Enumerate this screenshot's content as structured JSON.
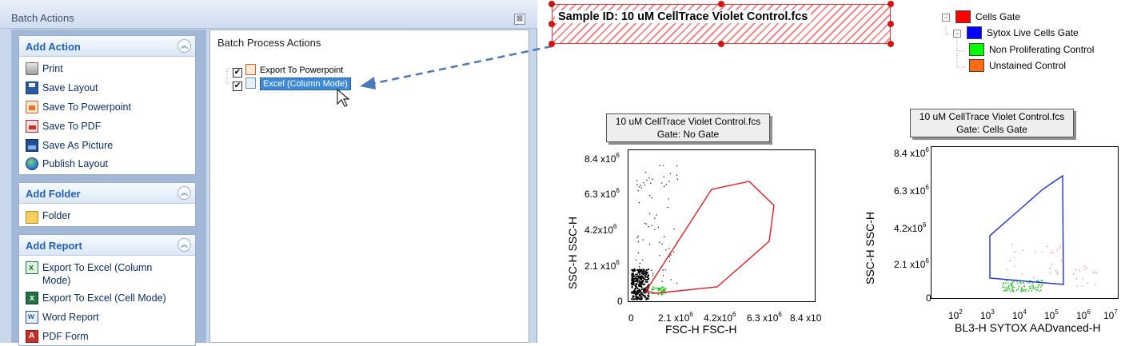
{
  "window": {
    "title": "Batch Actions",
    "close_glyph": "⊠"
  },
  "groups": {
    "add_action": {
      "title": "Add Action",
      "items": [
        {
          "label": "Print",
          "icon": "printer-icon"
        },
        {
          "label": "Save Layout",
          "icon": "floppy-disk-icon"
        },
        {
          "label": "Save To Powerpoint",
          "icon": "powerpoint-icon"
        },
        {
          "label": "Save To PDF",
          "icon": "pdf-icon"
        },
        {
          "label": "Save As Picture",
          "icon": "picture-icon"
        },
        {
          "label": "Publish Layout",
          "icon": "globe-icon"
        }
      ]
    },
    "add_folder": {
      "title": "Add Folder",
      "items": [
        {
          "label": "Folder",
          "icon": "folder-icon"
        }
      ]
    },
    "add_report": {
      "title": "Add Report",
      "items": [
        {
          "label": "Export To Excel (Column",
          "label2": "Mode)",
          "icon": "excel-icon"
        },
        {
          "label": "Export To Excel (Cell Mode)",
          "icon": "excel-icon"
        },
        {
          "label": "Word Report",
          "icon": "word-icon"
        },
        {
          "label": "PDF Form",
          "icon": "pdf-form-icon"
        }
      ]
    },
    "collapse_glyph": "︽"
  },
  "batch_process": {
    "header": "Batch Process Actions",
    "items": [
      {
        "label": "Export To Powerpoint",
        "checked": true,
        "selected": false
      },
      {
        "label": "Excel (Column Mode)",
        "checked": true,
        "selected": true
      }
    ],
    "check_glyph": "✔"
  },
  "sample": {
    "text": "Sample ID: 10 uM CellTrace Violet Control.fcs"
  },
  "gates": {
    "items": [
      {
        "label": "Cells Gate",
        "color": "#ff0000"
      },
      {
        "label": "Sytox Live Cells Gate",
        "color": "#0000ff"
      },
      {
        "label": "Non Proliferating Control",
        "color": "#00ff00"
      },
      {
        "label": "Unstained Control",
        "color": "#ff6a13"
      }
    ],
    "expander_glyph": "−"
  },
  "plots": [
    {
      "title_line1": "10 uM CellTrace Violet Control.fcs",
      "title_line2": "Gate: No Gate",
      "xlabel": "FSC-H FSC-H",
      "ylabel": "SSC-H SSC-H",
      "y_ticks": [
        {
          "base": "8.4 x10",
          "exp": "6"
        },
        {
          "base": "6.3 x10",
          "exp": "6"
        },
        {
          "base": "4.2x10",
          "exp": "6"
        },
        {
          "base": "2.1 x10",
          "exp": "6"
        },
        {
          "base": "0",
          "exp": ""
        }
      ],
      "x_ticks": [
        {
          "base": "0",
          "exp": ""
        },
        {
          "base": "2.1 x10",
          "exp": "6"
        },
        {
          "base": "4.2x10",
          "exp": "6"
        },
        {
          "base": "6.3 x10",
          "exp": "6"
        },
        {
          "base": "8.4 x10",
          "exp": ""
        }
      ],
      "gate_color": "#e41b1b"
    },
    {
      "title_line1": "10 uM CellTrace Violet Control.fcs",
      "title_line2": "Gate: Cells Gate",
      "xlabel": "BL3-H SYTOX AADvanced-H",
      "ylabel": "SSC-H SSC-H",
      "y_ticks": [
        {
          "base": "8.4 x10",
          "exp": "6"
        },
        {
          "base": "6.3 x10",
          "exp": "6"
        },
        {
          "base": "4.2x10",
          "exp": "6"
        },
        {
          "base": "2.1 x10",
          "exp": "6"
        },
        {
          "base": "0",
          "exp": ""
        }
      ],
      "x_ticks": [
        {
          "base": "10",
          "exp": "2"
        },
        {
          "base": "10",
          "exp": "3"
        },
        {
          "base": "10",
          "exp": "4"
        },
        {
          "base": "10",
          "exp": "5"
        },
        {
          "base": "10",
          "exp": "6"
        },
        {
          "base": "10",
          "exp": "7"
        }
      ],
      "gate_color": "#1f2fd6"
    }
  ],
  "colors": {
    "accent_blue": "#2160b6",
    "selection": "#3e8ad8",
    "arrow": "#4a78b8"
  }
}
